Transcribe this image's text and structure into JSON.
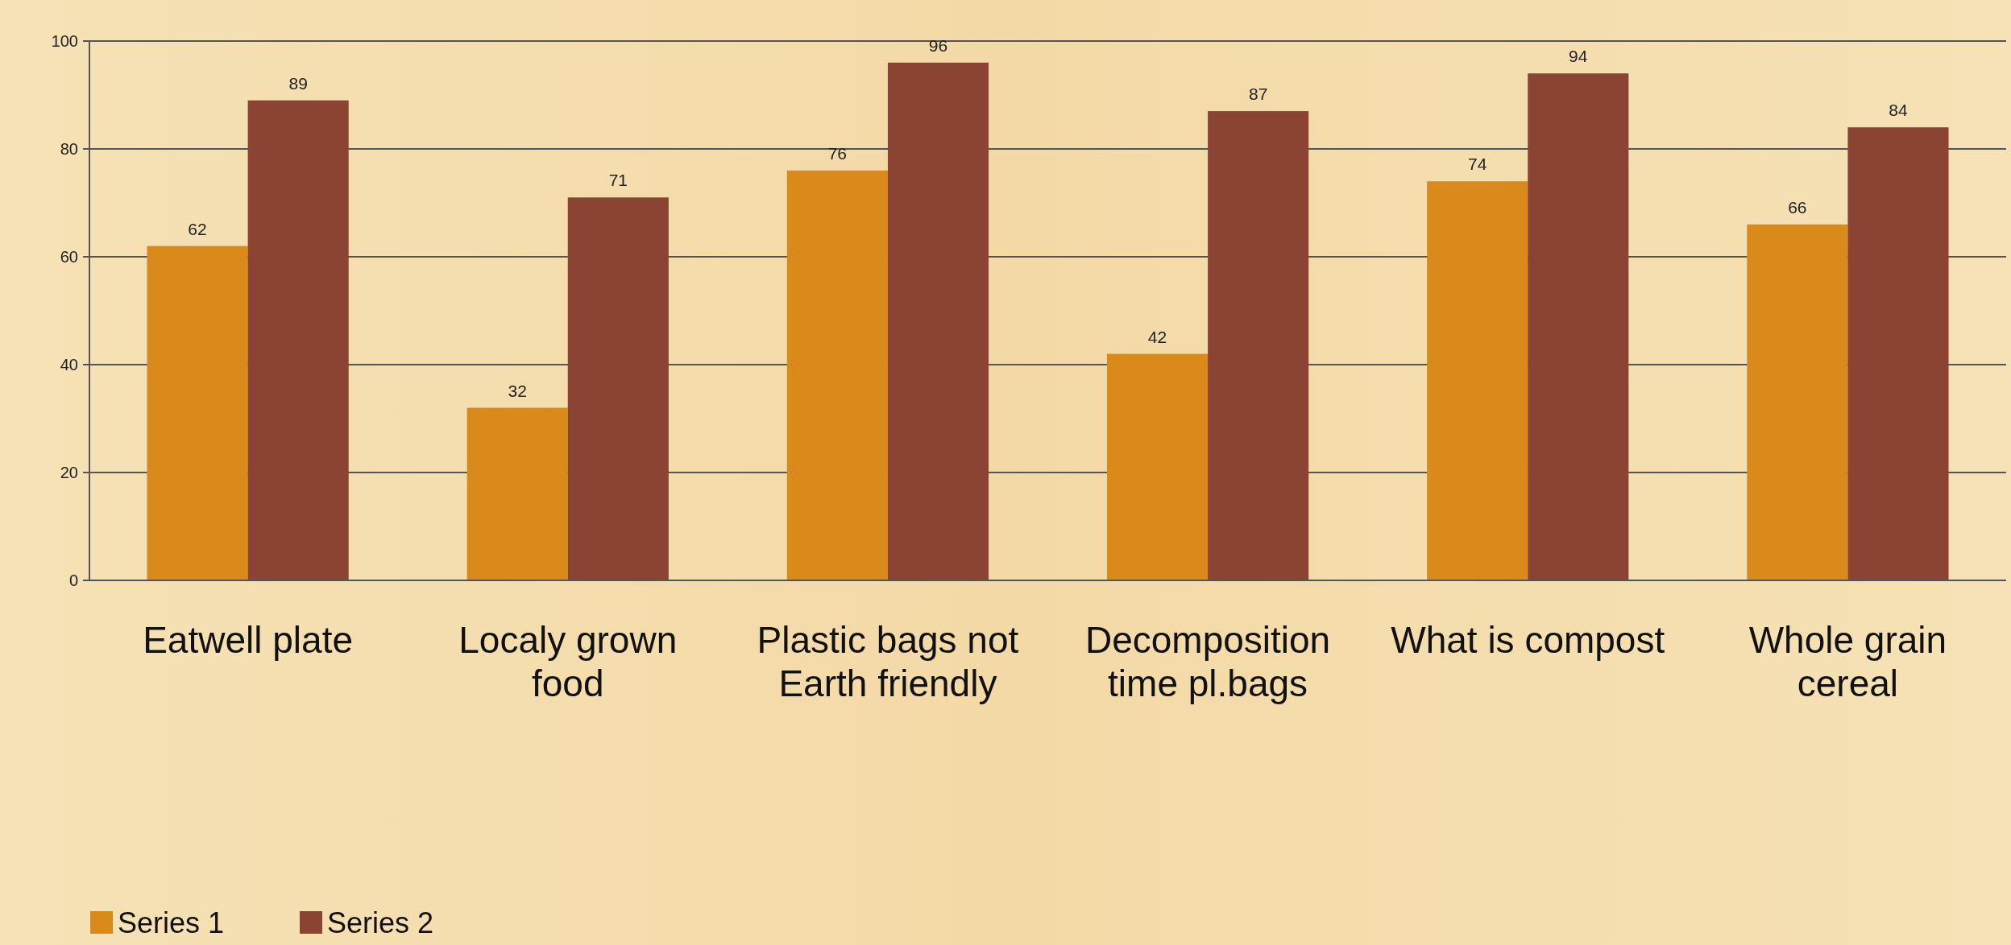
{
  "chart_data": {
    "type": "bar",
    "categories": [
      "Eatwell plate",
      "Localy grown food",
      "Plastic bags not Earth friendly",
      "Decomposition time pl.bags",
      "What is compost",
      "Whole grain cereal"
    ],
    "series": [
      {
        "name": "Series 1",
        "color": "#d98a1a",
        "values": [
          62,
          32,
          76,
          42,
          74,
          66
        ]
      },
      {
        "name": "Series 2",
        "color": "#8b4333",
        "values": [
          89,
          71,
          96,
          87,
          94,
          84
        ]
      }
    ],
    "ylim": [
      0,
      100
    ],
    "yticks": [
      0,
      20,
      40,
      60,
      80,
      100
    ],
    "grid": "y",
    "data_labels": true,
    "legend": "bottom"
  }
}
